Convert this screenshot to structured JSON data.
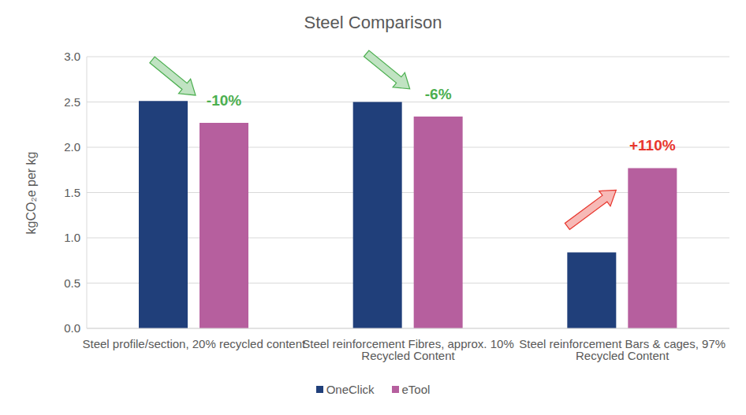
{
  "chart_data": {
    "type": "bar",
    "title": "Steel Comparison",
    "y_label": "kgCO₂e per kg",
    "categories": [
      "Steel profile/section, 20% recycled content",
      "Steel reinforcement Fibres, approx. 10% Recycled Content",
      "Steel reinforcement Bars & cages, 97% Recycled Content"
    ],
    "series": [
      {
        "name": "OneClick",
        "color": "#203f7a",
        "values": [
          2.51,
          2.5,
          0.84
        ]
      },
      {
        "name": "eTool",
        "color": "#b65f9e",
        "values": [
          2.27,
          2.34,
          1.77
        ]
      }
    ],
    "ylim": [
      0,
      3
    ],
    "yticks": [
      {
        "value": 0,
        "label": "0.0"
      },
      0.5,
      {
        "value": 1,
        "label": "1.0"
      },
      1.5,
      {
        "value": 2,
        "label": "2.0"
      },
      2.5,
      {
        "value": 3,
        "label": "3.0"
      }
    ],
    "grid": true,
    "legend": "bottom",
    "annotations": [
      {
        "text": "-10%",
        "color": "#4caf50"
      },
      {
        "text": "-6%",
        "color": "#4caf50"
      },
      {
        "text": "+110%",
        "color": "#e8362d"
      }
    ]
  }
}
